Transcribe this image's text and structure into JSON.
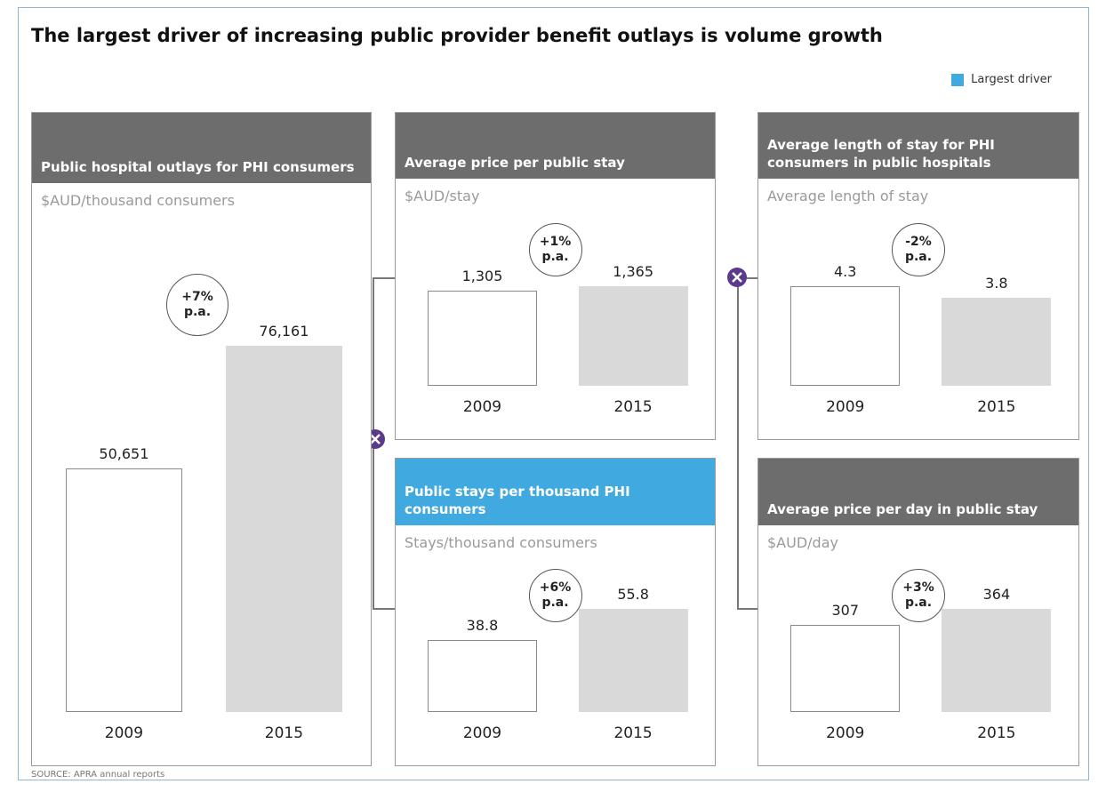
{
  "title": "The largest driver of increasing public provider benefit outlays is volume growth",
  "legend": {
    "label": "Largest driver",
    "color": "#3fa9e0"
  },
  "source": "SOURCE: APRA annual reports",
  "chart_data": [
    {
      "type": "bar",
      "title": "Public hospital outlays for PHI consumers",
      "subtitle": "$AUD/thousand consumers",
      "categories": [
        "2009",
        "2015"
      ],
      "values": [
        50651,
        76161
      ],
      "value_labels": [
        "50,651",
        "76,161"
      ],
      "annotation": "+7% p.a.",
      "header_color": "#6d6d6d",
      "colors": [
        "#ffffff",
        "#d9d9d9"
      ]
    },
    {
      "type": "bar",
      "title": "Average price per public stay",
      "subtitle": "$AUD/stay",
      "categories": [
        "2009",
        "2015"
      ],
      "values": [
        1305,
        1365
      ],
      "value_labels": [
        "1,305",
        "1,365"
      ],
      "annotation": "+1% p.a.",
      "header_color": "#6d6d6d",
      "colors": [
        "#ffffff",
        "#d9d9d9"
      ]
    },
    {
      "type": "bar",
      "title": "Public stays per thousand PHI consumers",
      "subtitle": "Stays/thousand consumers",
      "categories": [
        "2009",
        "2015"
      ],
      "values": [
        38.8,
        55.8
      ],
      "annotation": "+6% p.a.",
      "header_color": "#3fa9e0",
      "colors": [
        "#ffffff",
        "#d9d9d9"
      ]
    },
    {
      "type": "bar",
      "title": "Average length of stay for PHI consumers in public hospitals",
      "subtitle": "Average length of stay",
      "categories": [
        "2009",
        "2015"
      ],
      "values": [
        4.3,
        3.8
      ],
      "annotation": "-2% p.a.",
      "header_color": "#6d6d6d",
      "colors": [
        "#ffffff",
        "#d9d9d9"
      ]
    },
    {
      "type": "bar",
      "title": "Average price per day in public stay",
      "subtitle": "$AUD/day",
      "categories": [
        "2009",
        "2015"
      ],
      "values": [
        307,
        364
      ],
      "annotation": "+3% p.a.",
      "header_color": "#6d6d6d",
      "colors": [
        "#ffffff",
        "#d9d9d9"
      ]
    }
  ]
}
